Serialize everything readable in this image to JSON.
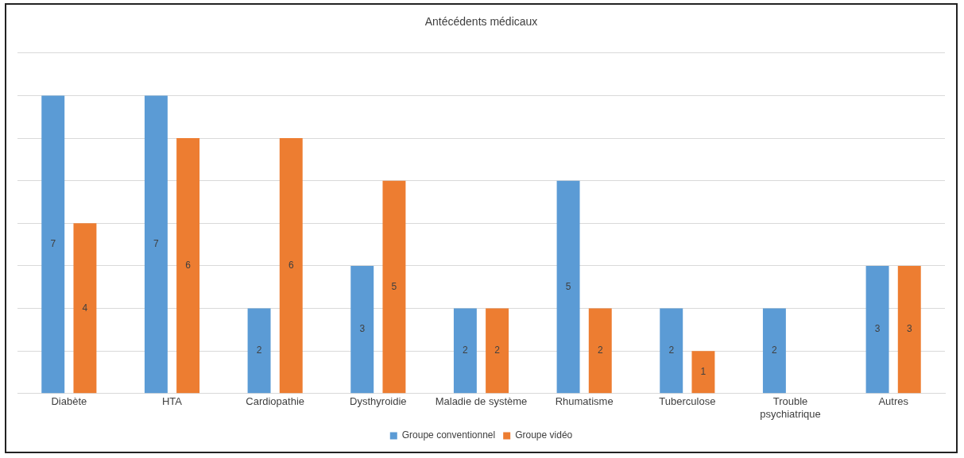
{
  "chart_data": {
    "type": "bar",
    "title": "Antécédents médicaux",
    "categories": [
      "Diabète",
      "HTA",
      "Cardiopathie",
      "Dysthyroidie",
      "Maladie de système",
      "Rhumatisme",
      "Tuberculose",
      "Trouble psychiatrique",
      "Autres"
    ],
    "series": [
      {
        "name": "Groupe conventionnel",
        "color": "#5b9bd5",
        "values": [
          7,
          7,
          2,
          3,
          2,
          5,
          2,
          2,
          3
        ]
      },
      {
        "name": "Groupe vidéo",
        "color": "#ed7d31",
        "values": [
          4,
          6,
          6,
          5,
          2,
          2,
          1,
          null,
          3
        ]
      }
    ],
    "ylim": [
      0,
      8
    ],
    "yticks": [
      {
        "value": 0,
        "label": null
      },
      {
        "value": 1,
        "label": null
      },
      {
        "value": 2,
        "label": null
      },
      {
        "value": 3,
        "label": null
      },
      {
        "value": 4,
        "label": null
      },
      {
        "value": 5,
        "label": null
      },
      {
        "value": 6,
        "label": null
      },
      {
        "value": 7,
        "label": null
      },
      {
        "value": 8,
        "label": null
      }
    ],
    "tick_labels": "x",
    "grid": "y",
    "legend": "bottom",
    "data_labels": true
  }
}
